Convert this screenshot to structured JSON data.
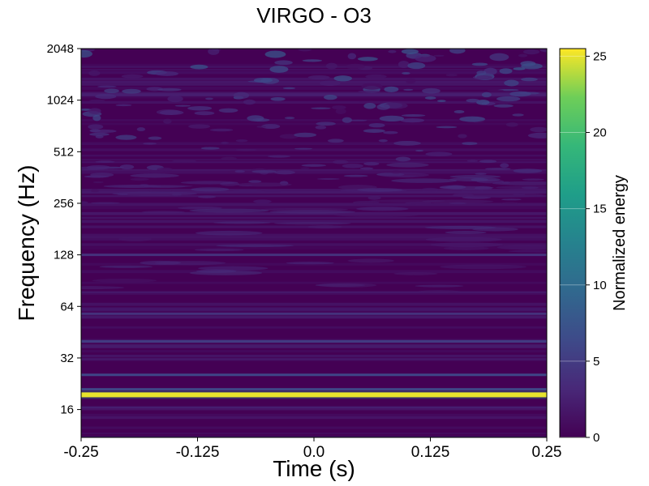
{
  "chart_data": {
    "type": "heatmap",
    "title": "VIRGO - O3",
    "xlabel": "Time (s)",
    "ylabel": "Frequency (Hz)",
    "colorbar_label": "Normalized energy",
    "colormap": "viridis",
    "x_ticks": [
      -0.25,
      -0.125,
      0.0,
      0.125,
      0.25
    ],
    "x_tick_labels": [
      "-0.25",
      "-0.125",
      "0.0",
      "0.125",
      "0.25"
    ],
    "xlim": [
      -0.25,
      0.25
    ],
    "y_scale": "log2",
    "y_ticks": [
      16,
      32,
      64,
      128,
      256,
      512,
      1024,
      2048
    ],
    "y_tick_labels": [
      "16",
      "32",
      "64",
      "128",
      "256",
      "512",
      "1024",
      "2048"
    ],
    "ylim": [
      11,
      2048
    ],
    "colorbar_ticks": [
      0,
      5,
      10,
      15,
      20,
      25
    ],
    "colorbar_tick_labels": [
      "0",
      "5",
      "10",
      "15",
      "20",
      "25"
    ],
    "colorbar_range": [
      0,
      25.5
    ],
    "features": [
      {
        "name": "line",
        "frequency_hz": 19.5,
        "energy": 25
      },
      {
        "name": "line",
        "frequency_hz": 21,
        "energy": 6
      },
      {
        "name": "line",
        "frequency_hz": 25.5,
        "energy": 6
      },
      {
        "name": "line",
        "frequency_hz": 40,
        "energy": 5
      },
      {
        "name": "line",
        "frequency_hz": 58,
        "energy": 4
      },
      {
        "name": "line",
        "frequency_hz": 128,
        "energy": 4
      }
    ],
    "grid": false
  }
}
